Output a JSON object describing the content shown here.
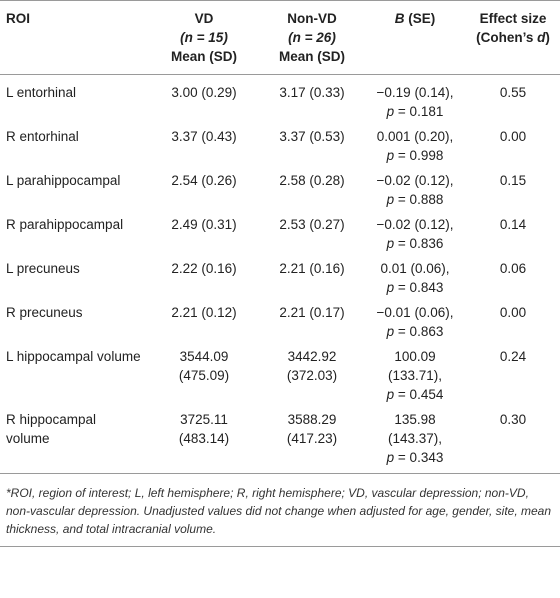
{
  "table": {
    "headers": {
      "roi": "ROI",
      "vd": [
        "VD",
        "(n = 15)",
        "Mean (SD)"
      ],
      "nonvd": [
        "Non-VD",
        "(n = 26)",
        "Mean (SD)"
      ],
      "b": "B (SE)",
      "effect": [
        "Effect size",
        "(Cohen’s d)"
      ]
    },
    "rows": [
      {
        "roi": [
          "L entorhinal"
        ],
        "vd": [
          "3.00 (0.29)"
        ],
        "nonvd": [
          "3.17 (0.33)"
        ],
        "b": [
          "−0.19 (0.14),",
          "p = 0.181"
        ],
        "effect": "0.55"
      },
      {
        "roi": [
          "R entorhinal"
        ],
        "vd": [
          "3.37 (0.43)"
        ],
        "nonvd": [
          "3.37 (0.53)"
        ],
        "b": [
          "0.001 (0.20),",
          "p = 0.998"
        ],
        "effect": "0.00"
      },
      {
        "roi": [
          "L parahippocampal"
        ],
        "vd": [
          "2.54 (0.26)"
        ],
        "nonvd": [
          "2.58 (0.28)"
        ],
        "b": [
          "−0.02 (0.12),",
          "p = 0.888"
        ],
        "effect": "0.15"
      },
      {
        "roi": [
          "R parahippocampal"
        ],
        "vd": [
          "2.49 (0.31)"
        ],
        "nonvd": [
          "2.53 (0.27)"
        ],
        "b": [
          "−0.02 (0.12),",
          "p = 0.836"
        ],
        "effect": "0.14"
      },
      {
        "roi": [
          "L precuneus"
        ],
        "vd": [
          "2.22 (0.16)"
        ],
        "nonvd": [
          "2.21 (0.16)"
        ],
        "b": [
          "0.01 (0.06),",
          "p = 0.843"
        ],
        "effect": "0.06"
      },
      {
        "roi": [
          "R precuneus"
        ],
        "vd": [
          "2.21 (0.12)"
        ],
        "nonvd": [
          "2.21 (0.17)"
        ],
        "b": [
          "−0.01 (0.06),",
          "p = 0.863"
        ],
        "effect": "0.00"
      },
      {
        "roi": [
          "L hippocampal volume"
        ],
        "vd": [
          "3544.09",
          "(475.09)"
        ],
        "nonvd": [
          "3442.92",
          "(372.03)"
        ],
        "b": [
          "100.09",
          "(133.71),",
          "p = 0.454"
        ],
        "effect": "0.24"
      },
      {
        "roi": [
          "R hippocampal",
          "volume"
        ],
        "vd": [
          "3725.11",
          "(483.14)"
        ],
        "nonvd": [
          "3588.29",
          "(417.23)"
        ],
        "b": [
          "135.98",
          "(143.37),",
          "p = 0.343"
        ],
        "effect": "0.30"
      }
    ],
    "footnote": "*ROI, region of interest; L, left hemisphere; R, right hemisphere; VD, vascular depression; non-VD, non-vascular depression. Unadjusted values did not change when adjusted for age, gender, site, mean thickness, and total intracranial volume."
  }
}
